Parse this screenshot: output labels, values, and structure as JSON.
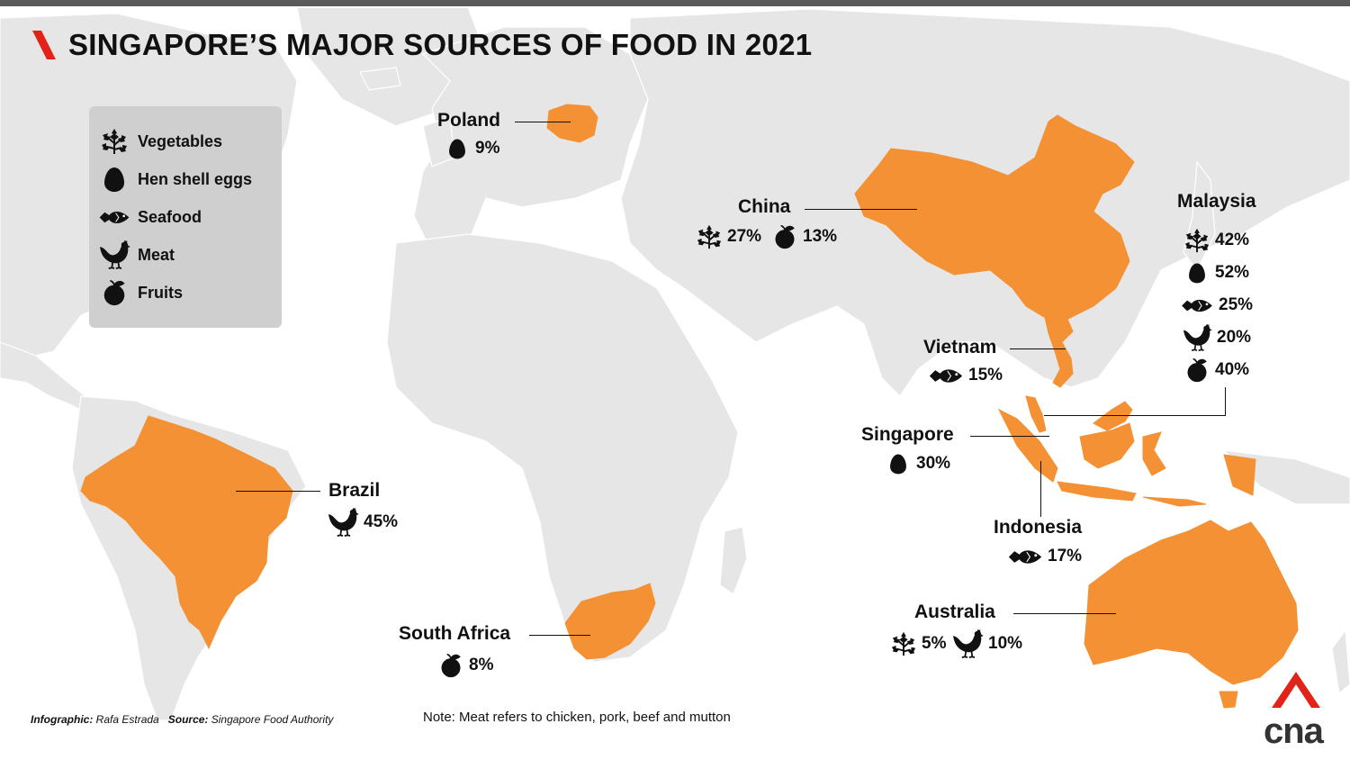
{
  "title": "SINGAPORE’S MAJOR SOURCES OF FOOD IN 2021",
  "colors": {
    "land": "#e6e6e6",
    "border": "#ffffff",
    "highlight": "#f39134",
    "ocean": "#ffffff",
    "legend_bg": "#cfcfcf",
    "brand": "#e2231a"
  },
  "legend": [
    {
      "icon": "vegetables-icon",
      "label": "Vegetables"
    },
    {
      "icon": "egg-icon",
      "label": "Hen shell eggs"
    },
    {
      "icon": "fish-icon",
      "label": "Seafood"
    },
    {
      "icon": "chicken-icon",
      "label": "Meat"
    },
    {
      "icon": "fruit-icon",
      "label": "Fruits"
    }
  ],
  "countries": {
    "poland": {
      "name": "Poland",
      "stats": [
        {
          "icon": "egg-icon",
          "value": "9%"
        }
      ]
    },
    "china": {
      "name": "China",
      "stats": [
        {
          "icon": "vegetables-icon",
          "value": "27%"
        },
        {
          "icon": "fruit-icon",
          "value": "13%"
        }
      ]
    },
    "malaysia": {
      "name": "Malaysia",
      "stats": [
        {
          "icon": "vegetables-icon",
          "value": "42%"
        },
        {
          "icon": "egg-icon",
          "value": "52%"
        },
        {
          "icon": "fish-icon",
          "value": "25%"
        },
        {
          "icon": "chicken-icon",
          "value": "20%"
        },
        {
          "icon": "fruit-icon",
          "value": "40%"
        }
      ]
    },
    "vietnam": {
      "name": "Vietnam",
      "stats": [
        {
          "icon": "fish-icon",
          "value": "15%"
        }
      ]
    },
    "singapore": {
      "name": "Singapore",
      "stats": [
        {
          "icon": "egg-icon",
          "value": "30%"
        }
      ]
    },
    "indonesia": {
      "name": "Indonesia",
      "stats": [
        {
          "icon": "fish-icon",
          "value": "17%"
        }
      ]
    },
    "brazil": {
      "name": "Brazil",
      "stats": [
        {
          "icon": "chicken-icon",
          "value": "45%"
        }
      ]
    },
    "south_africa": {
      "name": "South Africa",
      "stats": [
        {
          "icon": "fruit-icon",
          "value": "8%"
        }
      ]
    },
    "australia": {
      "name": "Australia",
      "stats": [
        {
          "icon": "vegetables-icon",
          "value": "5%"
        },
        {
          "icon": "chicken-icon",
          "value": "10%"
        }
      ]
    }
  },
  "footer": {
    "credit_label": "Infographic:",
    "credit_value": "Rafa Estrada",
    "source_label": "Source:",
    "source_value": "Singapore Food Authority",
    "note": "Note: Meat refers to chicken, pork, beef and mutton"
  },
  "logo_text": "cna"
}
